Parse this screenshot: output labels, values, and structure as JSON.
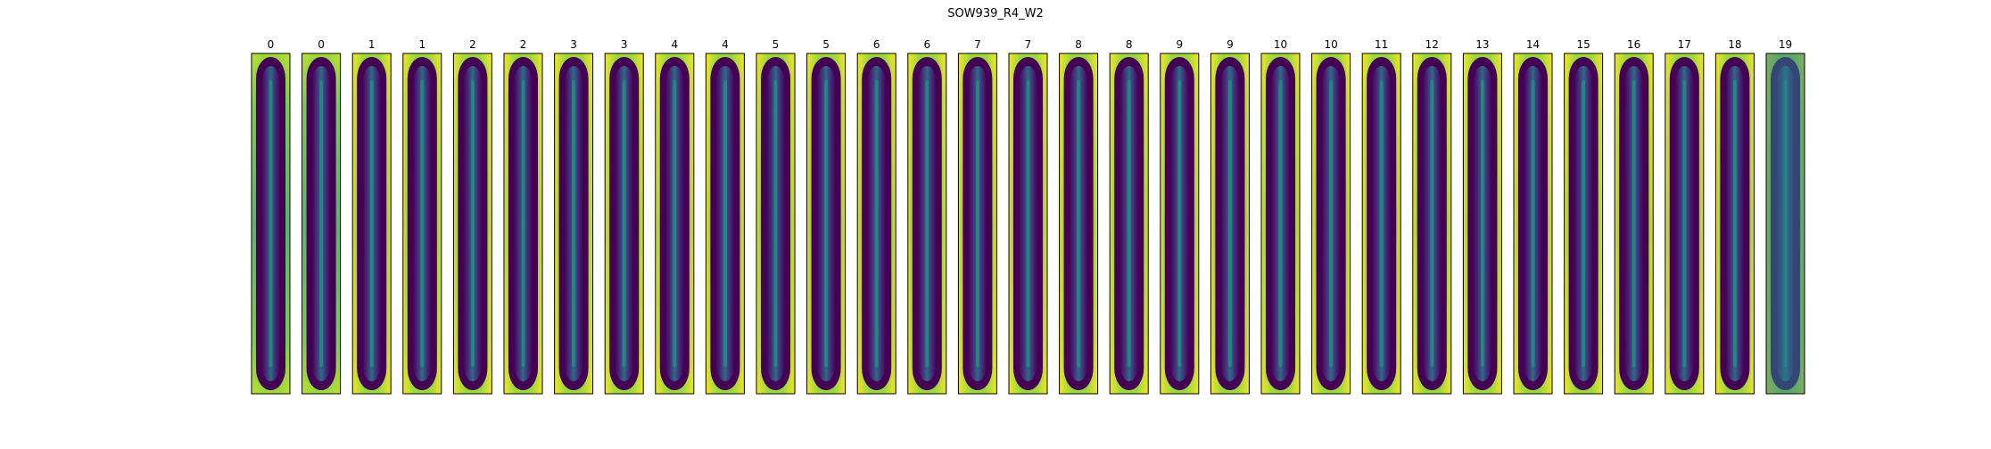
{
  "chart_data": {
    "type": "heatmap",
    "title": "SOW939_R4_W2",
    "colormap": "viridis",
    "panel_titles": [
      "0",
      "0",
      "1",
      "1",
      "2",
      "2",
      "3",
      "3",
      "4",
      "4",
      "5",
      "5",
      "6",
      "6",
      "7",
      "7",
      "8",
      "8",
      "9",
      "9",
      "10",
      "10",
      "11",
      "12",
      "13",
      "14",
      "15",
      "16",
      "17",
      "18",
      "19"
    ],
    "panel_count": 31
  },
  "colors": {
    "dark": "#440154",
    "dark2": "#46327e",
    "mid": "#365c8d",
    "teal": "#277f8e",
    "green": "#1fa187",
    "lightgreen": "#4ac16d",
    "yellowgreen": "#a0da39",
    "yellow": "#fde725",
    "frame": "#000000"
  }
}
